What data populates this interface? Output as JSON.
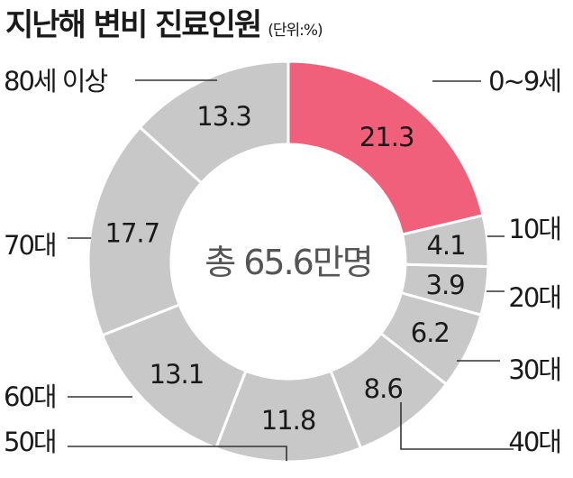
{
  "chart_data": {
    "type": "pie",
    "title": "지난해 변비 진료인원",
    "unit": "(단위:%)",
    "center_label": "총 65.6만명",
    "categories": [
      "0~9세",
      "10대",
      "20대",
      "30대",
      "40대",
      "50대",
      "60대",
      "70대",
      "80세 이상"
    ],
    "values": [
      21.3,
      4.1,
      3.9,
      6.2,
      8.6,
      11.8,
      13.1,
      17.7,
      13.3
    ],
    "value_labels": [
      "21.3",
      "4.1",
      "3.9",
      "6.2",
      "8.6",
      "11.8",
      "13.1",
      "17.7",
      "13.3"
    ],
    "colors": {
      "highlight": "#f0607a",
      "default": "#c8c8c8"
    },
    "highlight_index": 0
  }
}
